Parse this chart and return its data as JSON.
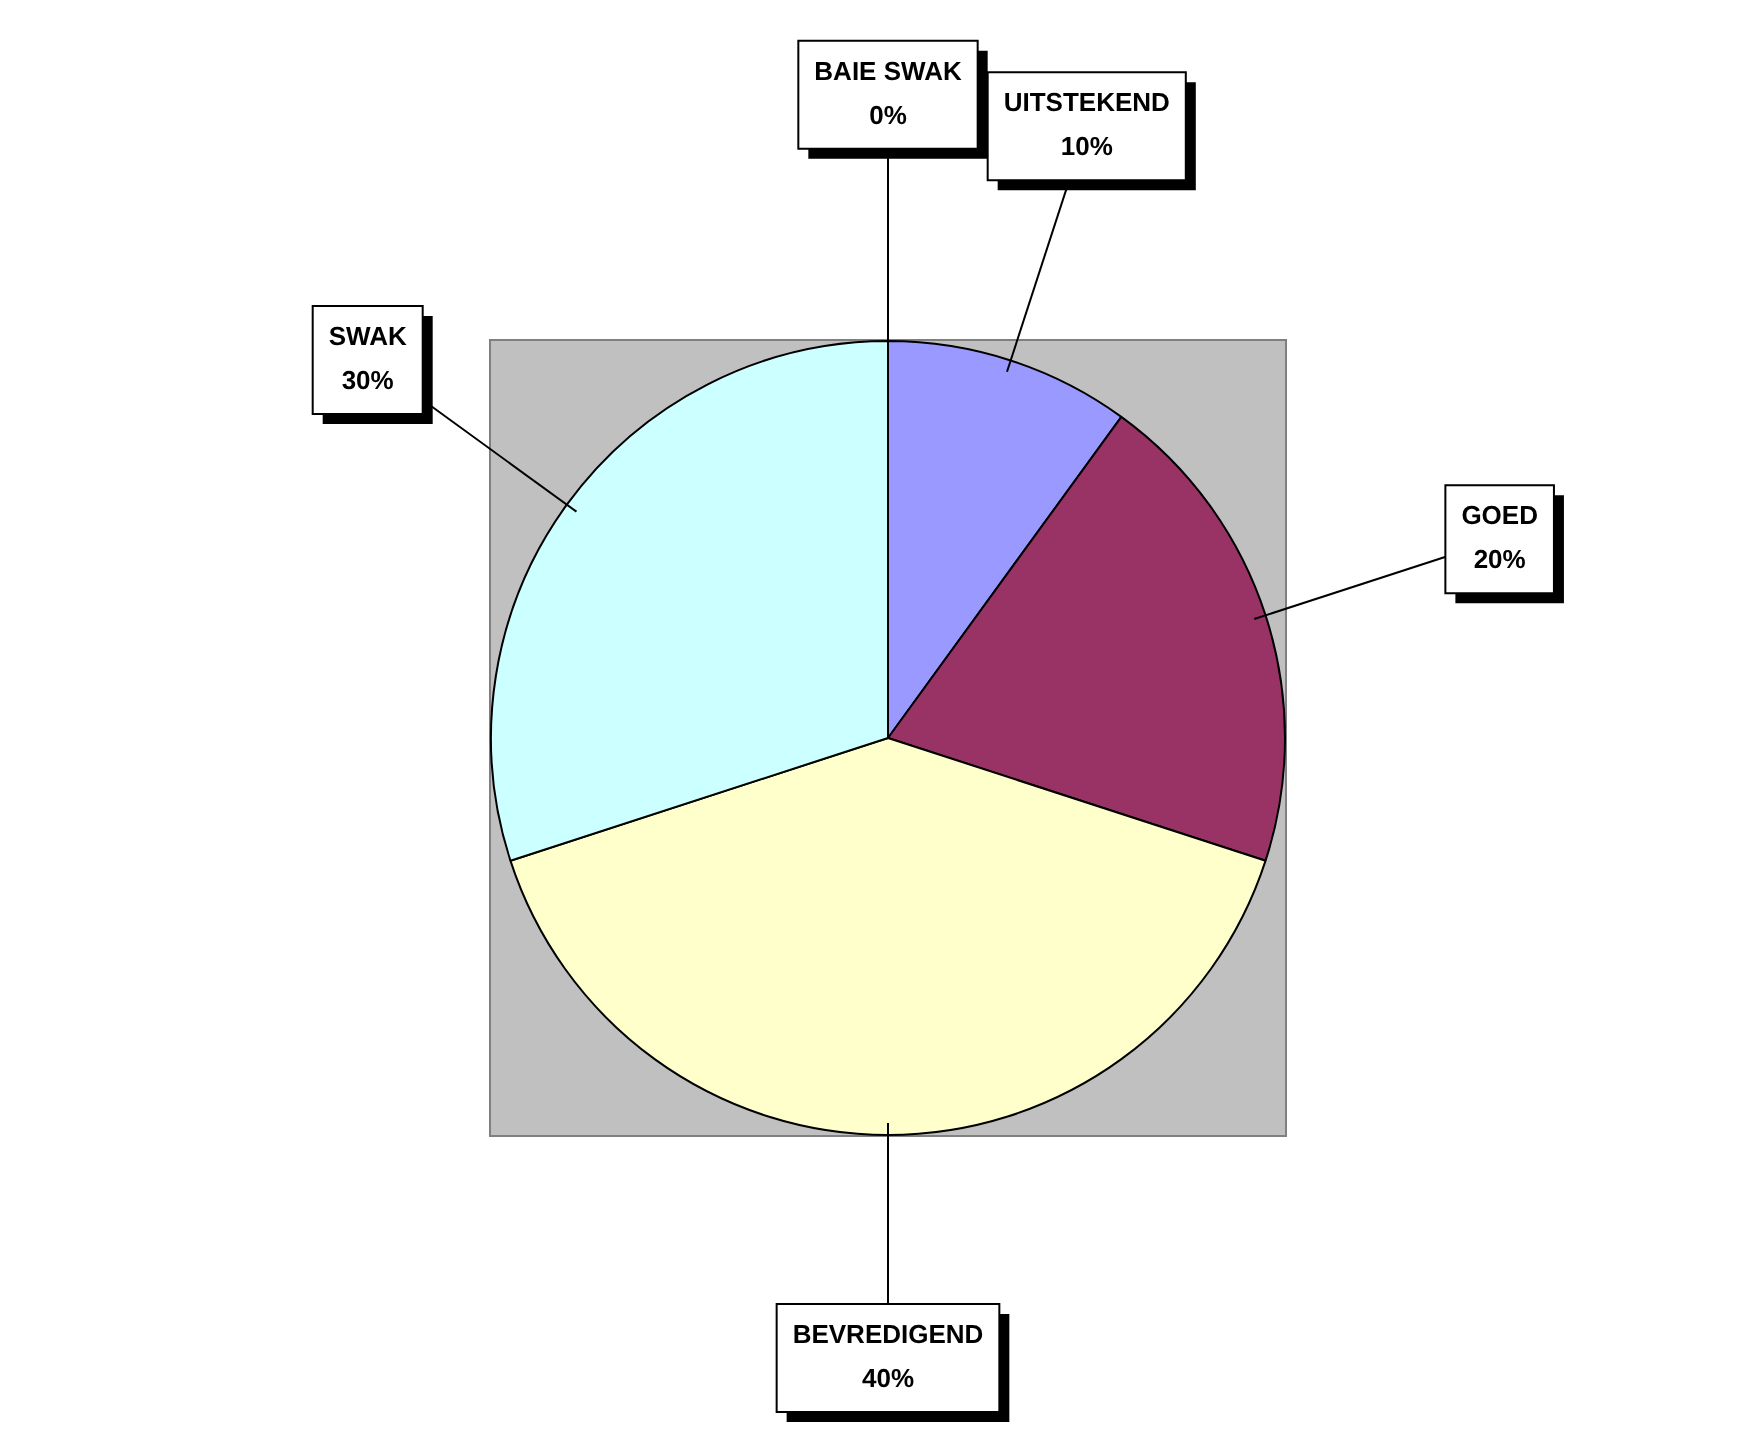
{
  "chart_data": {
    "type": "pie",
    "categories": [
      "UITSTEKEND",
      "GOED",
      "BEVREDIGEND",
      "SWAK",
      "BAIE SWAK"
    ],
    "values": [
      10,
      20,
      40,
      30,
      0
    ],
    "colors": [
      "#9999ff",
      "#993366",
      "#ffffcc",
      "#ccffff",
      "#660066"
    ],
    "value_labels": [
      "10%",
      "20%",
      "40%",
      "30%",
      "0%"
    ],
    "legend": false
  }
}
